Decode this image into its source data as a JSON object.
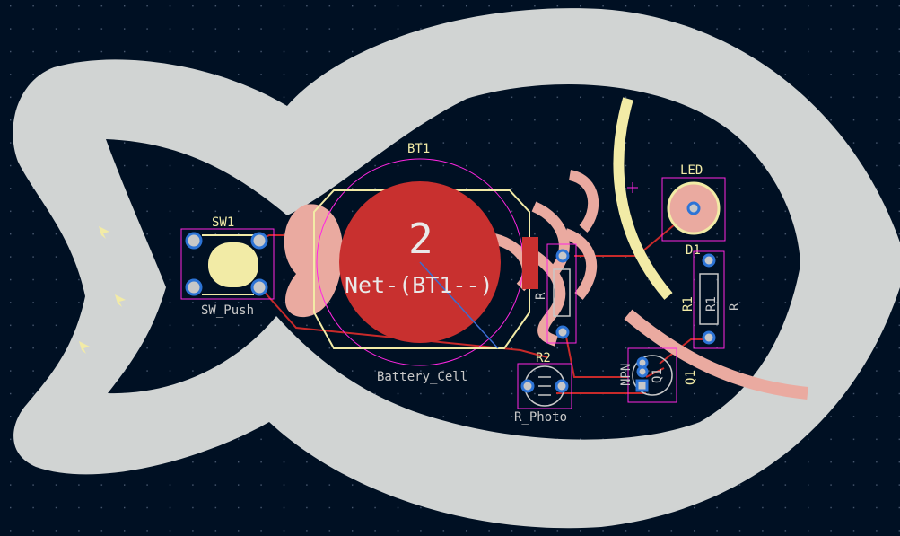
{
  "board": {
    "background": "#001023",
    "outline_color": "#d1d4d3",
    "copper_color": "#c8302f",
    "silk_color": "#f2eba6",
    "fab_color": "#c8c8c8",
    "courtyard_color": "#ff26e2",
    "mask_color": "#eaaaa0"
  },
  "components": {
    "bt1": {
      "ref": "BT1",
      "value": "Battery_Cell",
      "pad_number": "2",
      "net_label": "Net-(BT1--)"
    },
    "sw1": {
      "ref": "SW1",
      "value": "SW_Push"
    },
    "r2": {
      "ref": "R2",
      "value": "R_Photo"
    },
    "led": {
      "ref": "LED",
      "ref2": "D1"
    },
    "r1": {
      "ref": "R1",
      "fab_ref": "R1",
      "value": "R"
    },
    "q1": {
      "ref": "Q1",
      "fab_ref": "Q1",
      "value": "NPN"
    },
    "rv": {
      "fab_ref": "R"
    }
  }
}
